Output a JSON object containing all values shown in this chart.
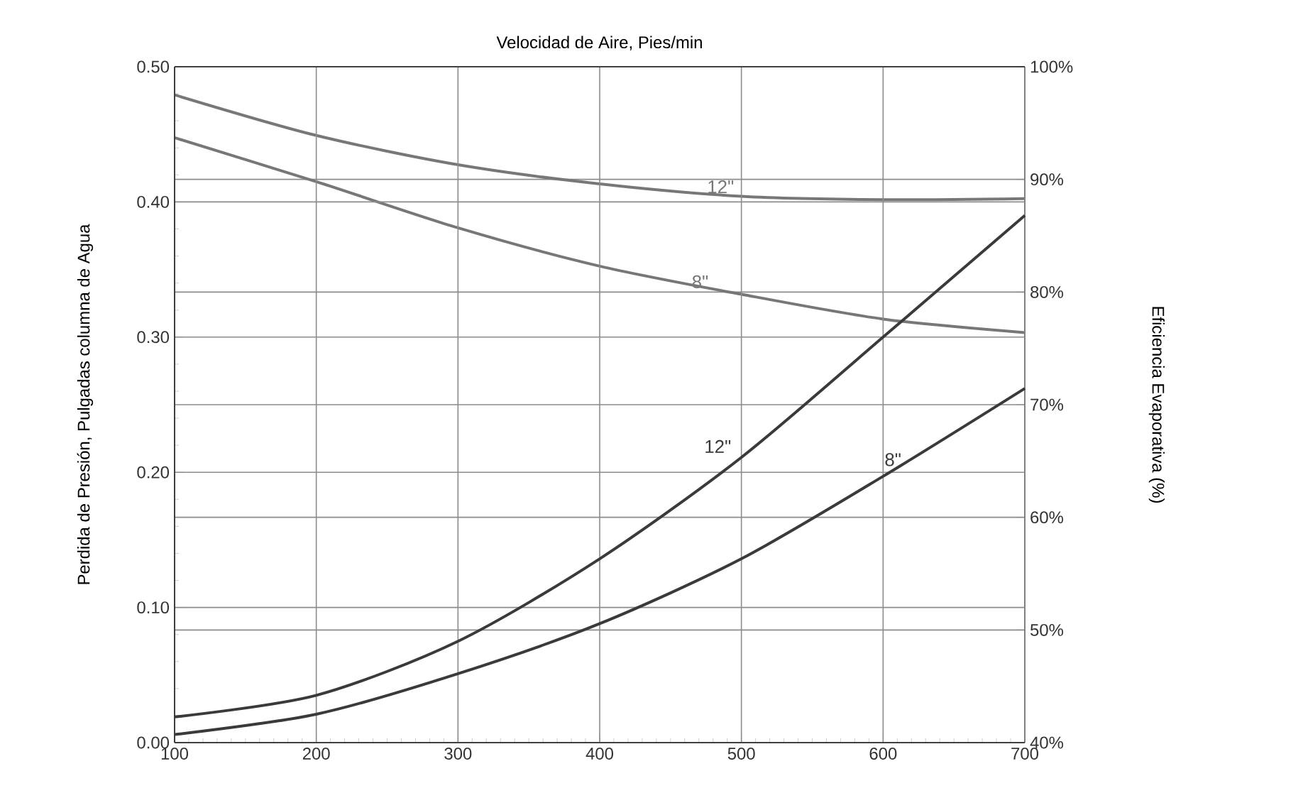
{
  "chart_data": {
    "type": "line",
    "xlabel": "Velocidad de Aire, Pies/min",
    "ylabel": "Perdida de Presión, Pulgadas columna de Agua",
    "y2label": "Eficiencia Evaporativa (%)",
    "x": [
      100,
      200,
      300,
      400,
      500,
      600,
      700
    ],
    "xlim": [
      100,
      700
    ],
    "xticks": [
      100,
      200,
      300,
      400,
      500,
      600,
      700
    ],
    "ylim": [
      0,
      0.5
    ],
    "yticks": [
      {
        "value": 0,
        "label": "0.00"
      },
      {
        "value": 0.1,
        "label": "0.10"
      },
      {
        "value": 0.2,
        "label": "0.20"
      },
      {
        "value": 0.3,
        "label": "0.30"
      },
      {
        "value": 0.4,
        "label": "0.40"
      },
      {
        "value": 0.5,
        "label": "0.50"
      }
    ],
    "y2lim": [
      40,
      100
    ],
    "y2ticks": [
      {
        "value": 40,
        "label": "40%"
      },
      {
        "value": 50,
        "label": "50%"
      },
      {
        "value": 60,
        "label": "60%"
      },
      {
        "value": 70,
        "label": "70%"
      },
      {
        "value": 80,
        "label": "80%"
      },
      {
        "value": 90,
        "label": "90%"
      },
      {
        "value": 100,
        "label": "100%"
      }
    ],
    "grid": true,
    "marker": "none",
    "line_style": "solid",
    "series": [
      {
        "name": "12\"",
        "color": "#777777",
        "axis": "y2",
        "values": [
          97.5,
          93.9,
          91.3,
          89.6,
          88.5,
          88.2,
          88.3
        ]
      },
      {
        "name": "8\"",
        "color": "#777777",
        "axis": "y2",
        "values": [
          93.7,
          89.8,
          85.7,
          82.3,
          79.8,
          77.6,
          76.4
        ]
      },
      {
        "name": "12\"",
        "color": "#3a3a3a",
        "axis": "y",
        "values": [
          0.019,
          0.035,
          0.075,
          0.136,
          0.211,
          0.3,
          0.39
        ]
      },
      {
        "name": "8\"",
        "color": "#3a3a3a",
        "axis": "y",
        "values": [
          0.006,
          0.021,
          0.051,
          0.088,
          0.136,
          0.197,
          0.262
        ]
      }
    ]
  }
}
